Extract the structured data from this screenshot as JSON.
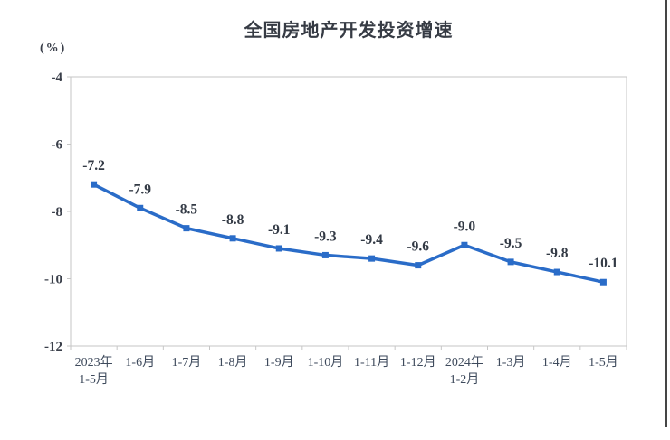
{
  "page": {
    "background_color": "#ffffff",
    "right_border_color": "#454545"
  },
  "chart": {
    "title": "全国房地产开发投资增速",
    "unit_label": "(%)"
  },
  "chart_data": {
    "type": "line",
    "title": "全国房地产开发投资增速",
    "unit": "(%)",
    "categories": [
      "2023年\n1-5月",
      "1-6月",
      "1-7月",
      "1-8月",
      "1-9月",
      "1-10月",
      "1-11月",
      "1-12月",
      "2024年\n1-2月",
      "1-3月",
      "1-4月",
      "1-5月"
    ],
    "values": [
      -7.2,
      -7.9,
      -8.5,
      -8.8,
      -9.1,
      -9.3,
      -9.4,
      -9.6,
      -9.0,
      -9.5,
      -9.8,
      -10.1
    ],
    "labels": [
      "-7.2",
      "-7.9",
      "-8.5",
      "-8.8",
      "-9.1",
      "-9.3",
      "-9.4",
      "-9.6",
      "-9.0",
      "-9.5",
      "-9.8",
      "-10.1"
    ],
    "ylim": [
      -12,
      -4
    ],
    "yticks": [
      -4,
      -6,
      -8,
      -10,
      -12
    ],
    "ytick_labels": [
      "-4",
      "-6",
      "-8",
      "-10",
      "-12"
    ],
    "grid": false,
    "legend": "none",
    "line_color": "#2a6cc8",
    "marker": "square",
    "marker_color": "#2a6cc8",
    "label_color": "#333a45",
    "axis_color": "#c6c6c6"
  }
}
